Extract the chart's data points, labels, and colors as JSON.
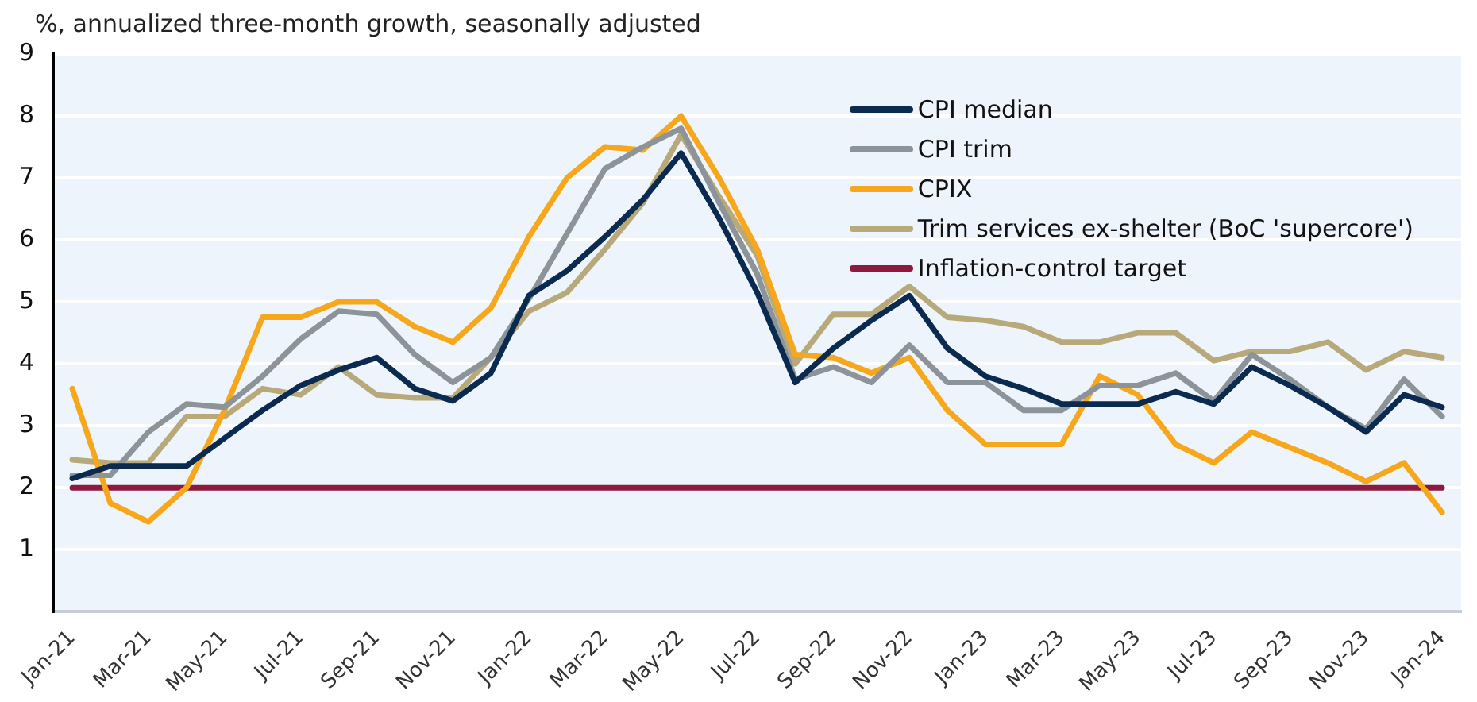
{
  "chart_data": {
    "type": "line",
    "title": "%, annualized three-month growth, seasonally adjusted",
    "categories": [
      "Jan-21",
      null,
      "Mar-21",
      null,
      "May-21",
      null,
      "Jul-21",
      null,
      "Sep-21",
      null,
      "Nov-21",
      null,
      "Jan-22",
      null,
      "Mar-22",
      null,
      "May-22",
      null,
      "Jul-22",
      null,
      "Sep-22",
      null,
      "Nov-22",
      null,
      "Jan-23",
      null,
      "Mar-23",
      null,
      "May-23",
      null,
      "Jul-23",
      null,
      "Sep-23",
      null,
      "Nov-23",
      null,
      "Jan-24"
    ],
    "series": [
      {
        "name": "CPI median",
        "color": "#0b2a4f",
        "values": [
          2.15,
          2.35,
          2.35,
          2.35,
          2.8,
          3.25,
          3.65,
          3.9,
          4.1,
          3.6,
          3.4,
          3.85,
          5.1,
          5.5,
          6.05,
          6.65,
          7.4,
          6.35,
          5.15,
          3.7,
          4.25,
          4.7,
          5.1,
          4.25,
          3.8,
          3.6,
          3.35,
          3.35,
          3.35,
          3.55,
          3.35,
          3.95,
          3.65,
          3.3,
          2.9,
          3.5,
          3.3
        ]
      },
      {
        "name": "CPI trim",
        "color": "#8c9399",
        "values": [
          2.2,
          2.2,
          2.9,
          3.35,
          3.3,
          3.8,
          4.4,
          4.85,
          4.8,
          4.15,
          3.7,
          4.1,
          5.05,
          6.1,
          7.15,
          7.5,
          7.8,
          6.6,
          5.45,
          3.75,
          3.95,
          3.7,
          4.3,
          3.7,
          3.7,
          3.25,
          3.25,
          3.65,
          3.65,
          3.85,
          3.4,
          4.15,
          3.75,
          3.3,
          2.95,
          3.75,
          3.15
        ]
      },
      {
        "name": "CPIX",
        "color": "#f6a71c",
        "values": [
          3.6,
          1.75,
          1.45,
          2.0,
          3.25,
          4.75,
          4.75,
          5.0,
          5.0,
          4.6,
          4.35,
          4.9,
          6.05,
          7.0,
          7.5,
          7.45,
          8.0,
          7.0,
          5.85,
          4.15,
          4.1,
          3.85,
          4.1,
          3.25,
          2.7,
          2.7,
          2.7,
          3.8,
          3.5,
          2.7,
          2.4,
          2.9,
          2.65,
          2.4,
          2.1,
          2.4,
          1.6
        ]
      },
      {
        "name": "Trim services ex-shelter (BoC 'supercore')",
        "color": "#b8a97a",
        "values": [
          2.45,
          2.4,
          2.4,
          3.15,
          3.15,
          3.6,
          3.5,
          3.95,
          3.5,
          3.45,
          3.45,
          4.1,
          4.85,
          5.15,
          5.85,
          6.6,
          7.7,
          6.7,
          5.75,
          4.0,
          4.8,
          4.8,
          5.25,
          4.75,
          4.7,
          4.6,
          4.35,
          4.35,
          4.5,
          4.5,
          4.05,
          4.2,
          4.2,
          4.35,
          3.9,
          4.2,
          4.1
        ]
      },
      {
        "name": "Inflation-control target",
        "color": "#8b1a3e",
        "values": [
          2,
          2,
          2,
          2,
          2,
          2,
          2,
          2,
          2,
          2,
          2,
          2,
          2,
          2,
          2,
          2,
          2,
          2,
          2,
          2,
          2,
          2,
          2,
          2,
          2,
          2,
          2,
          2,
          2,
          2,
          2,
          2,
          2,
          2,
          2,
          2,
          2
        ]
      }
    ],
    "ylim": [
      0,
      9
    ],
    "yticks": [
      {
        "value": 0,
        "label": null
      },
      1,
      2,
      3,
      4,
      5,
      6,
      7,
      8,
      9
    ],
    "grid": "y",
    "legend": "top right",
    "marker": "none",
    "line_style": "solid"
  }
}
